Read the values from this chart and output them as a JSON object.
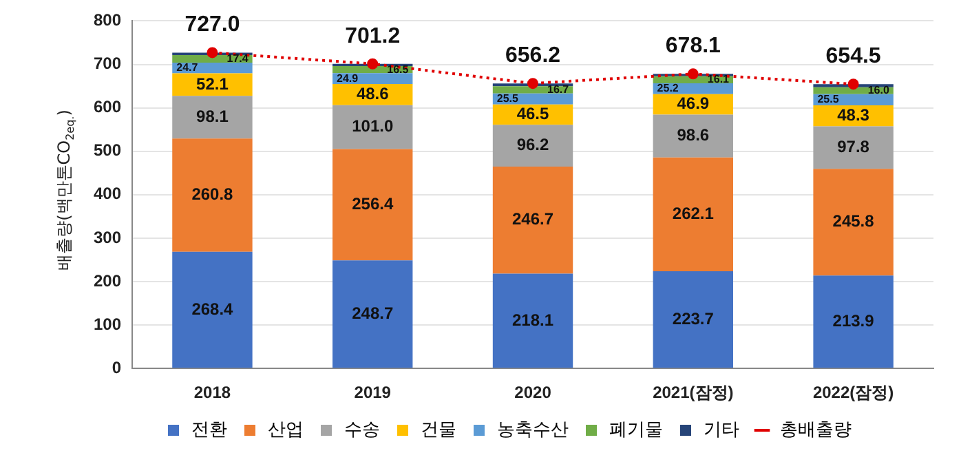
{
  "chart_data": {
    "type": "bar",
    "stacked": true,
    "ylabel": "배출량(백만톤CO$_{2eq.}$)",
    "categories": [
      "2018",
      "2019",
      "2020",
      "2021(잠정)",
      "2022(잠정)"
    ],
    "ylim": [
      0,
      800
    ],
    "yticks": [
      0,
      100,
      200,
      300,
      400,
      500,
      600,
      700,
      800
    ],
    "grid": "y",
    "legend": "bottom",
    "series": [
      {
        "name": "전환",
        "color": "#4472c4",
        "values": [
          268.4,
          248.7,
          218.1,
          223.7,
          213.9
        ],
        "value_labels": [
          "268.4",
          "248.7",
          "218.1",
          "223.7",
          "213.9"
        ]
      },
      {
        "name": "산업",
        "color": "#ed7d31",
        "values": [
          260.8,
          256.4,
          246.7,
          262.1,
          245.8
        ],
        "value_labels": [
          "260.8",
          "256.4",
          "246.7",
          "262.1",
          "245.8"
        ]
      },
      {
        "name": "수송",
        "color": "#a5a5a5",
        "values": [
          98.1,
          101.0,
          96.2,
          98.6,
          97.8
        ],
        "value_labels": [
          "98.1",
          "101.0",
          "96.2",
          "98.6",
          "97.8"
        ]
      },
      {
        "name": "건물",
        "color": "#ffc000",
        "values": [
          52.1,
          48.6,
          46.5,
          46.9,
          48.3
        ],
        "value_labels": [
          "52.1",
          "48.6",
          "46.5",
          "46.9",
          "48.3"
        ]
      },
      {
        "name": "농축수산",
        "color": "#5b9bd5",
        "values": [
          24.7,
          24.9,
          25.5,
          25.2,
          25.5
        ],
        "value_labels": [
          "24.7",
          "24.9",
          "25.5",
          "25.2",
          "25.5"
        ]
      },
      {
        "name": "폐기물",
        "color": "#70ad47",
        "values": [
          17.4,
          16.5,
          16.7,
          16.1,
          16.0
        ],
        "value_labels": [
          "17.4",
          "16.5",
          "16.7",
          "16.1",
          "16.0"
        ]
      },
      {
        "name": "기타",
        "color": "#264478",
        "values": [
          5.5,
          5.1,
          6.5,
          5.5,
          7.2
        ]
      },
      {
        "name": "총배출량",
        "type": "line",
        "color": "#e00000",
        "marker": "circle",
        "line_style": "dotted",
        "values": [
          727.0,
          701.2,
          656.2,
          678.1,
          654.5
        ],
        "value_labels": [
          "727.0",
          "701.2",
          "656.2",
          "678.1",
          "654.5"
        ]
      }
    ]
  }
}
